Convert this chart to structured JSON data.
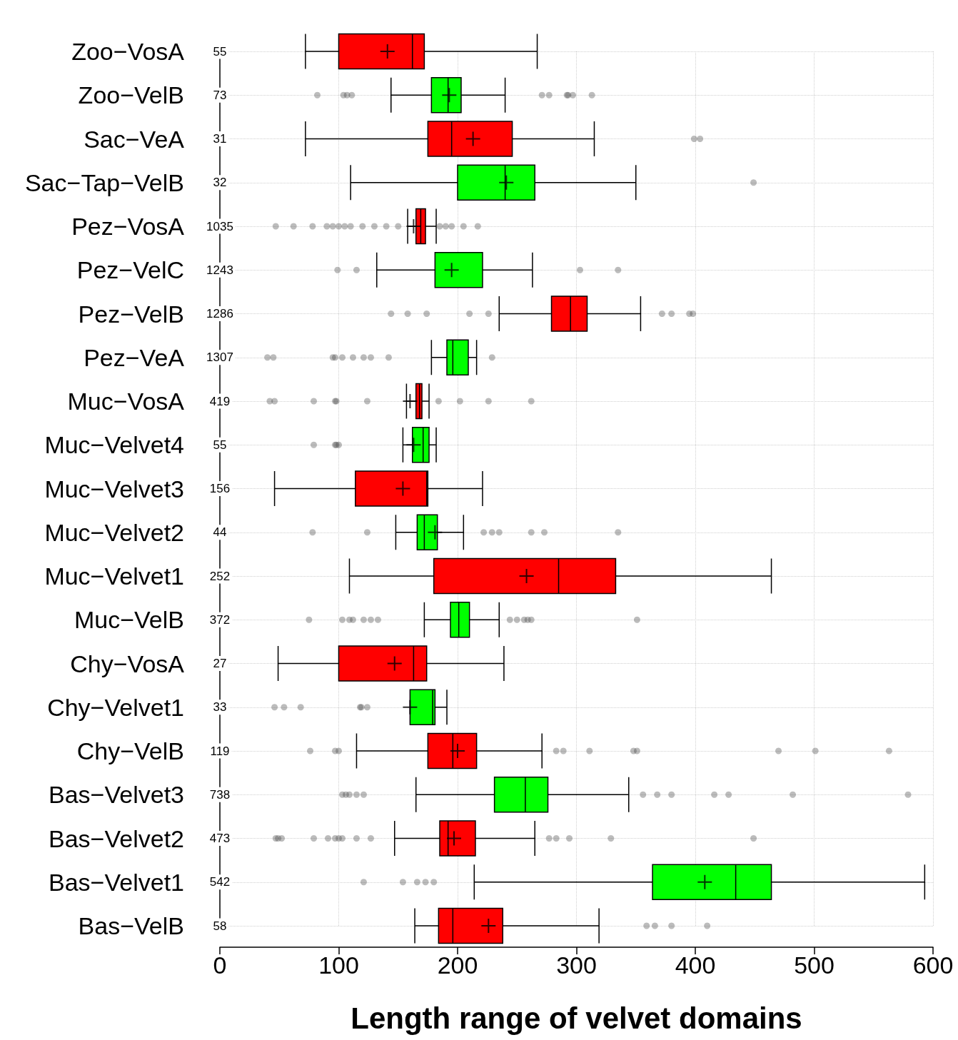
{
  "chart_data": {
    "type": "box",
    "orientation": "horizontal",
    "xlabel": "Length range of velvet domains",
    "xlim": [
      0,
      600
    ],
    "xticks": [
      0,
      100,
      200,
      300,
      400,
      500,
      600
    ],
    "grid": true,
    "marker": "circle",
    "categories": [
      "Zoo−VosA",
      "Zoo−VelB",
      "Sac−VeA",
      "Sac−Tap−VelB",
      "Pez−VosA",
      "Pez−VelC",
      "Pez−VelB",
      "Pez−VeA",
      "Muc−VosA",
      "Muc−Velvet4",
      "Muc−Velvet3",
      "Muc−Velvet2",
      "Muc−Velvet1",
      "Muc−VelB",
      "Chy−VosA",
      "Chy−Velvet1",
      "Chy−VelB",
      "Bas−Velvet3",
      "Bas−Velvet2",
      "Bas−Velvet1",
      "Bas−VelB"
    ],
    "colors": [
      "#ff0000",
      "#00ff00",
      "#ff0000",
      "#00ff00",
      "#ff0000",
      "#00ff00",
      "#ff0000",
      "#00ff00",
      "#ff0000",
      "#00ff00",
      "#ff0000",
      "#00ff00",
      "#ff0000",
      "#00ff00",
      "#ff0000",
      "#00ff00",
      "#ff0000",
      "#00ff00",
      "#ff0000",
      "#00ff00",
      "#ff0000"
    ],
    "boxes": [
      {
        "low": 72,
        "q1": 100,
        "median": 162,
        "q3": 172,
        "high": 267,
        "mean": 141
      },
      {
        "low": 144,
        "q1": 178,
        "median": 192,
        "q3": 203,
        "high": 240,
        "mean": 193,
        "outliers": [
          82,
          104,
          107,
          111,
          271,
          277,
          292,
          293,
          297,
          313
        ]
      },
      {
        "low": 72,
        "q1": 175,
        "median": 195,
        "q3": 246,
        "high": 315,
        "mean": 213,
        "outliers": [
          399,
          404
        ]
      },
      {
        "low": 110,
        "q1": 200,
        "median": 240,
        "q3": 265,
        "high": 350,
        "mean": 241,
        "outliers": [
          449
        ]
      },
      {
        "low": 158,
        "q1": 165,
        "median": 169,
        "q3": 173,
        "high": 182,
        "mean": 163,
        "outliers": [
          47,
          62,
          78,
          90,
          95,
          100,
          105,
          110,
          120,
          130,
          140,
          150,
          185,
          190,
          195,
          205,
          217
        ]
      },
      {
        "low": 132,
        "q1": 181,
        "median": 181,
        "q3": 221,
        "high": 263,
        "mean": 195,
        "outliers": [
          99,
          115,
          303,
          335
        ]
      },
      {
        "low": 235,
        "q1": 279,
        "median": 295,
        "q3": 309,
        "high": 354,
        "outliers": [
          144,
          158,
          174,
          210,
          226,
          372,
          380,
          395,
          398
        ]
      },
      {
        "low": 178,
        "q1": 191,
        "median": 196,
        "q3": 209,
        "high": 216,
        "outliers": [
          40,
          45,
          95,
          97,
          103,
          112,
          121,
          127,
          142,
          229
        ]
      },
      {
        "low": 157,
        "q1": 165,
        "median": 168,
        "q3": 170,
        "high": 176,
        "mean": 160,
        "outliers": [
          42,
          46,
          79,
          97,
          98,
          124,
          184,
          202,
          226,
          262
        ]
      },
      {
        "low": 154,
        "q1": 162,
        "median": 171,
        "q3": 176,
        "high": 182,
        "mean": 163,
        "outliers": [
          79,
          97,
          98,
          100
        ]
      },
      {
        "low": 46,
        "q1": 114,
        "median": 174,
        "q3": 175,
        "high": 221,
        "mean": 154
      },
      {
        "low": 148,
        "q1": 166,
        "median": 172,
        "q3": 183,
        "high": 205,
        "mean": 181,
        "outliers": [
          78,
          124,
          222,
          229,
          235,
          262,
          273,
          335
        ]
      },
      {
        "low": 109,
        "q1": 180,
        "median": 285,
        "q3": 333,
        "high": 464,
        "mean": 258
      },
      {
        "low": 172,
        "q1": 194,
        "median": 201,
        "q3": 210,
        "high": 235,
        "outliers": [
          75,
          103,
          109,
          112,
          121,
          127,
          133,
          244,
          250,
          256,
          259,
          262,
          351
        ]
      },
      {
        "low": 49,
        "q1": 100,
        "median": 163,
        "q3": 174,
        "high": 239,
        "mean": 147
      },
      {
        "low": 160,
        "q1": 160,
        "median": 179,
        "q3": 181,
        "high": 191,
        "mean": 160,
        "outliers": [
          46,
          54,
          68,
          118,
          119,
          124
        ]
      },
      {
        "low": 115,
        "q1": 175,
        "median": 196,
        "q3": 216,
        "high": 271,
        "mean": 200,
        "outliers": [
          76,
          97,
          100,
          283,
          289,
          311,
          348,
          351,
          470,
          501,
          563
        ]
      },
      {
        "low": 165,
        "q1": 231,
        "median": 257,
        "q3": 276,
        "high": 344,
        "outliers": [
          103,
          106,
          109,
          115,
          121,
          356,
          368,
          380,
          416,
          428,
          482,
          579
        ]
      },
      {
        "low": 147,
        "q1": 185,
        "median": 192,
        "q3": 215,
        "high": 265,
        "mean": 197,
        "outliers": [
          47,
          49,
          52,
          79,
          91,
          97,
          100,
          103,
          115,
          127,
          277,
          283,
          294,
          329,
          449
        ]
      },
      {
        "low": 214,
        "q1": 364,
        "median": 434,
        "q3": 464,
        "high": 593,
        "mean": 408,
        "outliers": [
          121,
          154,
          166,
          173,
          180
        ]
      },
      {
        "low": 164,
        "q1": 184,
        "median": 196,
        "q3": 238,
        "high": 319,
        "mean": 226,
        "outliers": [
          359,
          366,
          380,
          410
        ]
      }
    ],
    "annotations": [
      "55",
      "73",
      "31",
      "32",
      "1035",
      "1243",
      "1286",
      "1307",
      "419",
      "55",
      "156",
      "44",
      "252",
      "372",
      "27",
      "33",
      "119",
      "738",
      "473",
      "542",
      "58"
    ]
  }
}
